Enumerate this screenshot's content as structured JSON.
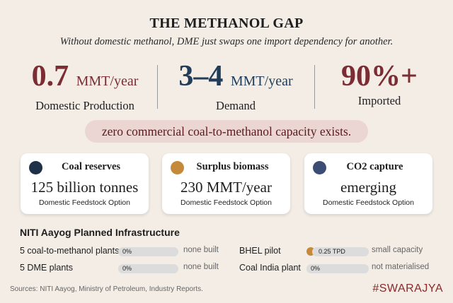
{
  "header": {
    "title": "THE METHANOL GAP",
    "subtitle": "Without domestic methanol, DME just swaps one import dependency for another."
  },
  "stats": [
    {
      "value": "0.7",
      "unit": "MMT/year",
      "label": "Domestic Production",
      "color": "#7b2d33"
    },
    {
      "value": "3–4",
      "unit": "MMT/year",
      "label": "Demand",
      "color": "#223d5a"
    },
    {
      "value": "90%+",
      "unit": "",
      "label": "Imported",
      "color": "#7b2d33"
    }
  ],
  "banner": "zero commercial coal-to-methanol capacity exists.",
  "cards": [
    {
      "title": "Coal reserves",
      "value": "125 billion tonnes",
      "note": "Domestic Feedstock Option",
      "dot_color": "#1f3147"
    },
    {
      "title": "Surplus biomass",
      "value": "230 MMT/year",
      "note": "Domestic Feedstock Option",
      "dot_color": "#c48a3a"
    },
    {
      "title": "CO2 capture",
      "value": "emerging",
      "note": "Domestic Feedstock Option",
      "dot_color": "#3b4d72"
    }
  ],
  "infrastructure": {
    "title": "NITI Aayog Planned Infrastructure",
    "rows": [
      {
        "label": "5 coal-to-methanol plants",
        "bar_text": "0%",
        "progress_pct": 0,
        "note": "none built"
      },
      {
        "label": "5 DME plants",
        "bar_text": "0%",
        "progress_pct": 0,
        "note": "none built"
      },
      {
        "label": "BHEL pilot",
        "bar_text": "0.25 TPD",
        "note": "small capacity",
        "dot_color": "#c48a3a"
      },
      {
        "label": "Coal India plant",
        "bar_text": "0%",
        "progress_pct": 0,
        "note": "not materialised"
      }
    ]
  },
  "footer": {
    "source": "Sources: NITI Aayog, Ministry of Petroleum, Industry Reports.",
    "hashtag": "#SWARAJYA"
  }
}
